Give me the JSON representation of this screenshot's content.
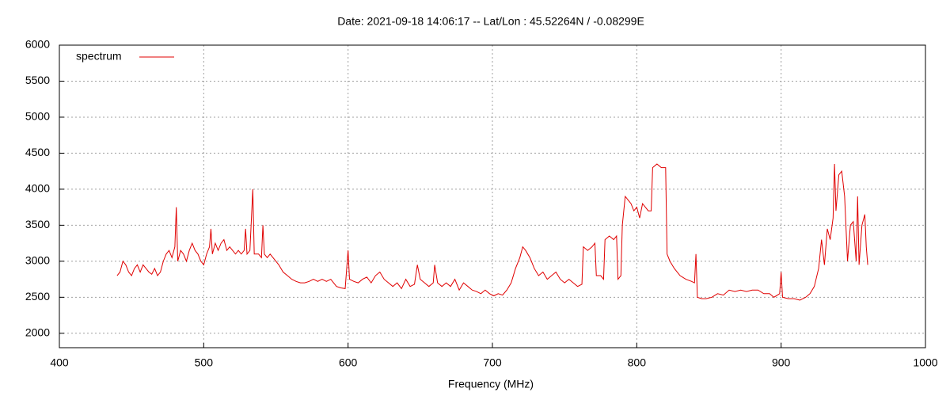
{
  "chart_data": {
    "type": "line",
    "title": "Date: 2021-09-18 14:06:17  --  Lat/Lon : 45.52264N / -0.08299E",
    "xlabel": "Frequency (MHz)",
    "xlim": [
      400,
      1000
    ],
    "xticks": [
      400,
      500,
      600,
      700,
      800,
      900,
      1000
    ],
    "ylim": [
      1800,
      6000
    ],
    "yticks": [
      2000,
      2500,
      3000,
      3500,
      4000,
      4500,
      5000,
      5500,
      6000
    ],
    "grid": true,
    "legend": "top-left",
    "x": [
      440,
      442,
      444,
      446,
      448,
      450,
      452,
      454,
      456,
      458,
      460,
      462,
      464,
      466,
      468,
      470,
      472,
      474,
      476,
      478,
      480,
      481,
      482,
      484,
      486,
      488,
      490,
      492,
      494,
      496,
      498,
      500,
      502,
      504,
      505,
      506,
      508,
      510,
      512,
      514,
      516,
      518,
      520,
      522,
      524,
      526,
      528,
      529,
      530,
      532,
      534,
      535,
      538,
      540,
      541,
      542,
      544,
      546,
      548,
      550,
      552,
      555,
      558,
      561,
      564,
      567,
      570,
      573,
      576,
      579,
      582,
      585,
      588,
      590,
      592,
      595,
      598,
      600,
      601,
      604,
      607,
      610,
      613,
      616,
      619,
      622,
      625,
      628,
      631,
      634,
      637,
      640,
      643,
      646,
      648,
      650,
      653,
      656,
      659,
      660,
      662,
      665,
      668,
      671,
      674,
      677,
      680,
      683,
      686,
      689,
      692,
      695,
      698,
      701,
      704,
      707,
      710,
      713,
      716,
      719,
      721,
      723,
      726,
      729,
      732,
      735,
      738,
      741,
      744,
      747,
      750,
      753,
      756,
      759,
      762,
      763,
      766,
      769,
      771,
      772,
      775,
      777,
      778,
      781,
      784,
      786,
      787,
      789,
      790,
      792,
      794,
      796,
      798,
      800,
      802,
      804,
      806,
      808,
      810,
      811,
      814,
      817,
      820,
      821,
      823,
      826,
      830,
      834,
      838,
      840,
      841,
      842,
      845,
      848,
      852,
      856,
      860,
      864,
      868,
      872,
      876,
      880,
      884,
      888,
      892,
      895,
      899,
      900,
      901,
      905,
      909,
      913,
      917,
      920,
      923,
      926,
      928,
      930,
      932,
      934,
      936,
      937,
      938,
      940,
      942,
      944,
      946,
      948,
      950,
      952,
      953,
      954,
      956,
      958,
      959,
      960
    ],
    "series": [
      {
        "name": "spectrum",
        "color": "#e00000",
        "values": [
          2800,
          2850,
          3000,
          2950,
          2850,
          2800,
          2900,
          2950,
          2850,
          2950,
          2900,
          2850,
          2820,
          2900,
          2800,
          2850,
          3000,
          3100,
          3150,
          3050,
          3200,
          3750,
          3000,
          3150,
          3100,
          3000,
          3150,
          3250,
          3150,
          3100,
          3000,
          2950,
          3100,
          3200,
          3450,
          3100,
          3250,
          3150,
          3250,
          3300,
          3150,
          3200,
          3150,
          3100,
          3150,
          3100,
          3150,
          3450,
          3100,
          3150,
          4000,
          3100,
          3100,
          3050,
          3500,
          3100,
          3050,
          3100,
          3050,
          3000,
          2950,
          2850,
          2800,
          2750,
          2720,
          2700,
          2700,
          2720,
          2750,
          2720,
          2750,
          2720,
          2750,
          2700,
          2650,
          2630,
          2620,
          3150,
          2750,
          2720,
          2700,
          2750,
          2780,
          2700,
          2800,
          2850,
          2750,
          2700,
          2650,
          2700,
          2620,
          2750,
          2650,
          2680,
          2950,
          2750,
          2700,
          2650,
          2700,
          2950,
          2700,
          2650,
          2700,
          2650,
          2750,
          2600,
          2700,
          2650,
          2600,
          2580,
          2550,
          2600,
          2550,
          2520,
          2550,
          2530,
          2600,
          2700,
          2900,
          3050,
          3200,
          3150,
          3050,
          2900,
          2800,
          2850,
          2750,
          2800,
          2850,
          2750,
          2700,
          2750,
          2700,
          2650,
          2680,
          3200,
          3150,
          3200,
          3250,
          2800,
          2800,
          2750,
          3300,
          3350,
          3300,
          3350,
          2750,
          2800,
          3500,
          3900,
          3850,
          3800,
          3700,
          3750,
          3600,
          3800,
          3750,
          3700,
          3700,
          4300,
          4350,
          4300,
          4300,
          3100,
          3000,
          2900,
          2800,
          2750,
          2720,
          2700,
          3100,
          2500,
          2480,
          2480,
          2500,
          2550,
          2530,
          2600,
          2580,
          2600,
          2580,
          2600,
          2600,
          2550,
          2550,
          2500,
          2550,
          2850,
          2500,
          2480,
          2480,
          2460,
          2500,
          2550,
          2650,
          2900,
          3300,
          2950,
          3450,
          3300,
          3600,
          4350,
          3700,
          4200,
          4250,
          3900,
          3000,
          3500,
          3550,
          3000,
          3900,
          2950,
          3500,
          3650,
          3200,
          2950
        ]
      }
    ]
  }
}
